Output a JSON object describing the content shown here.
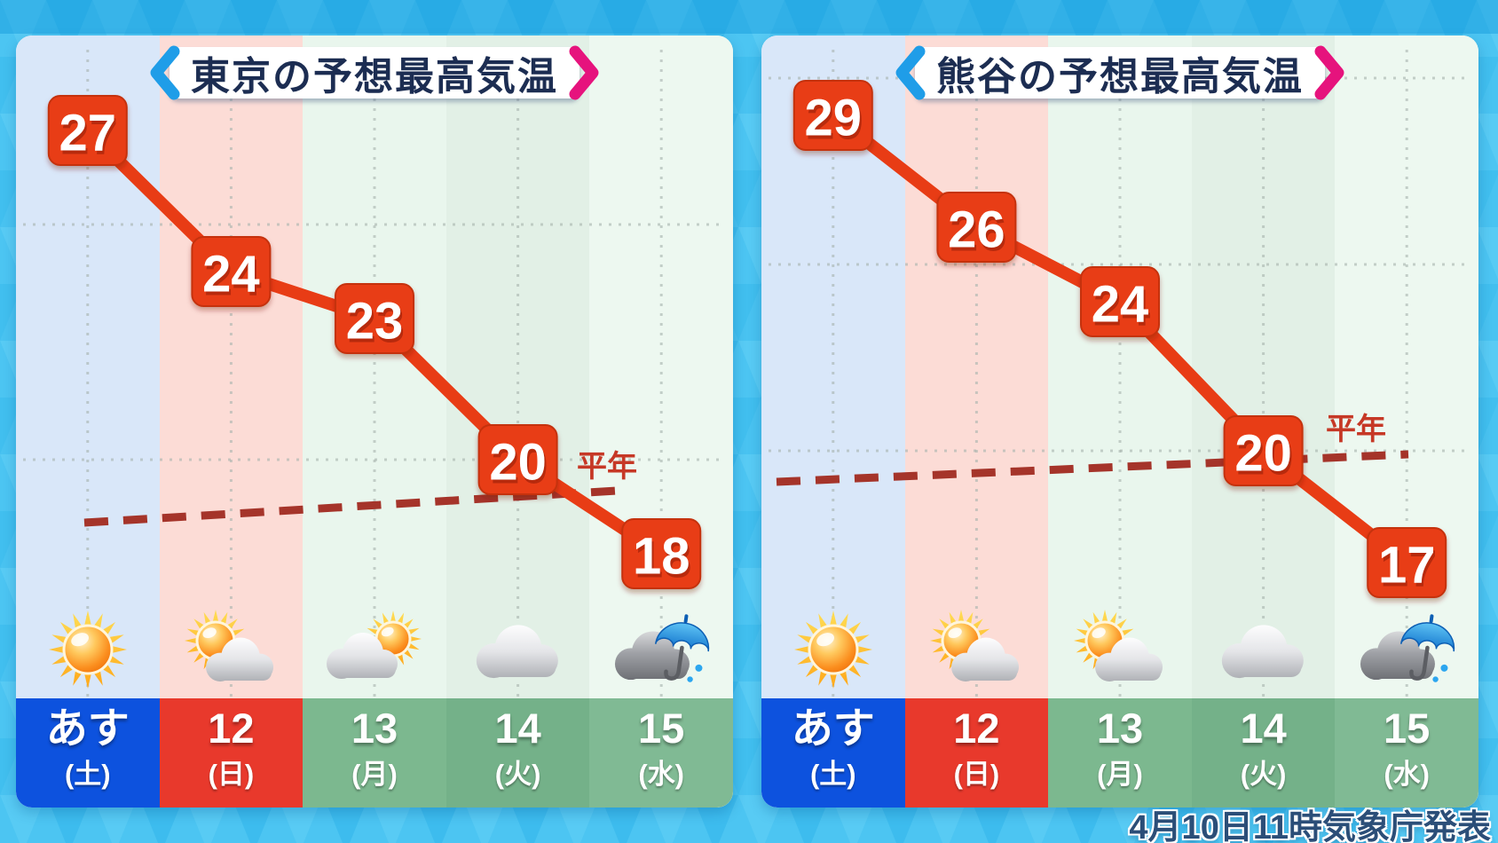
{
  "caption": "4月10日11時気象庁発表",
  "colors": {
    "background": "#47c1f0",
    "banner_blue": "#1f9de8",
    "banner_pink": "#e6137d",
    "title_text": "#1c2d52",
    "box_red": "#e83c15",
    "line_red": "#e83c15",
    "normal_dashed": "#a5342a",
    "normal_text": "#c63826",
    "caption_text": "#2b4e78",
    "grid_dot": "#a7b3ad",
    "column_stripes": [
      "#d9e7f9",
      "#fcdcd6",
      "#e9f6ed",
      "#e2f0e6",
      "#edf8f0"
    ],
    "day_colors": [
      "#0d52de",
      "#e8392c",
      "#7cb88f",
      "#74b189",
      "#80ba94"
    ]
  },
  "chart_data": [
    {
      "type": "line",
      "title": "東京の予想最高気温",
      "unit": "°C",
      "categories": [
        "あす(土)",
        "12(日)",
        "13(月)",
        "14(火)",
        "15(水)"
      ],
      "series": [
        {
          "name": "予想最高気温",
          "values": [
            27,
            24,
            23,
            20,
            18
          ]
        }
      ],
      "normal_line": {
        "label": "平年",
        "approx_start": 18.7,
        "approx_end": 19.3
      },
      "gridline_temps": [
        25,
        20
      ],
      "weather_icons": [
        "sunny",
        "sunny-cloudy",
        "cloudy-sunny",
        "cloudy",
        "rain-umbrella"
      ],
      "days": [
        {
          "label": "あす",
          "sub": "(土)"
        },
        {
          "label": "12",
          "sub": "(日)"
        },
        {
          "label": "13",
          "sub": "(月)"
        },
        {
          "label": "14",
          "sub": "(火)"
        },
        {
          "label": "15",
          "sub": "(水)"
        }
      ]
    },
    {
      "type": "line",
      "title": "熊谷の予想最高気温",
      "unit": "°C",
      "categories": [
        "あす(土)",
        "12(日)",
        "13(月)",
        "14(火)",
        "15(水)"
      ],
      "series": [
        {
          "name": "予想最高気温",
          "values": [
            29,
            26,
            24,
            20,
            17
          ]
        }
      ],
      "normal_line": {
        "label": "平年",
        "approx_start": 19.2,
        "approx_end": 19.9
      },
      "gridline_temps": [
        30,
        25,
        20
      ],
      "weather_icons": [
        "sunny",
        "sunny-cloudy",
        "sunny-cloudy",
        "cloudy",
        "rain-umbrella"
      ],
      "days": [
        {
          "label": "あす",
          "sub": "(土)"
        },
        {
          "label": "12",
          "sub": "(日)"
        },
        {
          "label": "13",
          "sub": "(月)"
        },
        {
          "label": "14",
          "sub": "(火)"
        },
        {
          "label": "15",
          "sub": "(水)"
        }
      ]
    }
  ]
}
